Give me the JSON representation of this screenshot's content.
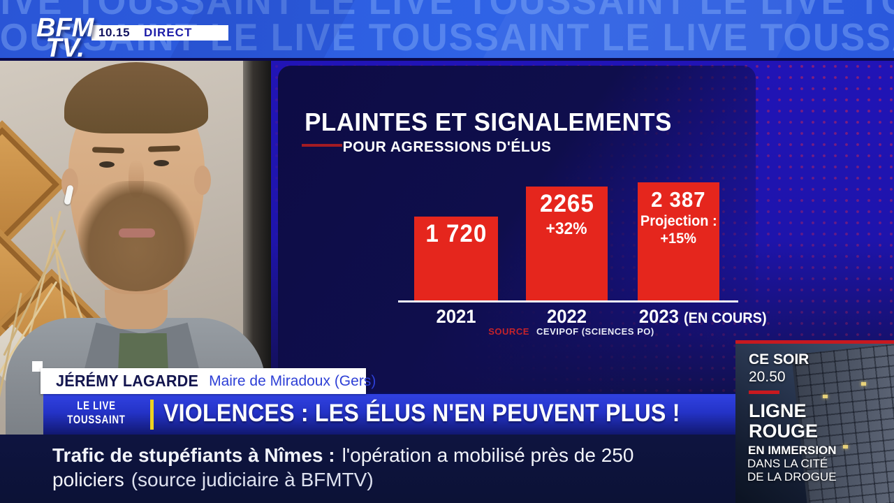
{
  "channel": {
    "logo_line1": "BFM",
    "logo_line2": "TV.",
    "time": "10.15",
    "live": "DIRECT"
  },
  "watermark": {
    "row": "LE LIVE TOUSSAINT LE LIVE TOUSSAINT LE LIVE TOUSSAINT LE LIVE TOUSSAINT"
  },
  "chart_data": {
    "type": "bar",
    "title": "PLAINTES ET SIGNALEMENTS",
    "subtitle": "POUR AGRESSIONS D'ÉLUS",
    "categories": [
      "2021",
      "2022",
      "2023 (EN COURS)"
    ],
    "values": [
      1720,
      2265,
      2387
    ],
    "bar_value_labels": [
      "1 720",
      "2265",
      "2 387"
    ],
    "annotations": {
      "growth_2022": "+32%",
      "projection_label": "Projection :",
      "projection_value": "+15%"
    },
    "x_display": {
      "y1": "2021",
      "y2": "2022",
      "y3": "2023",
      "y3_suffix": "(EN COURS)"
    },
    "source_label": "SOURCE",
    "source_text": "CEVIPOF (SCIENCES PO)",
    "bar_color": "#e5261d",
    "ylim": [
      0,
      2500
    ],
    "legend": "none",
    "grid": false
  },
  "speaker": {
    "name": "JÉRÉMY LAGARDE",
    "role": "Maire de Miradoux (Gers)"
  },
  "program_badge": {
    "line1": "LE LIVE",
    "line2": "TOUSSAINT"
  },
  "headline": {
    "text": "VIOLENCES : LES ÉLUS N'EN PEUVENT PLUS !"
  },
  "ticker": {
    "lead": "Trafic de stupéfiants à Nîmes :",
    "body": "l'opération a mobilisé près de 250",
    "body2": "policiers",
    "source": "(source judiciaire à BFMTV)"
  },
  "promo": {
    "kicker": "CE SOIR",
    "time": "20.50",
    "title_line1": "LIGNE",
    "title_line2": "ROUGE",
    "sub1": "EN IMMERSION",
    "sub2": "DANS LA CITÉ",
    "sub3": "DE LA DROGUE"
  },
  "colors": {
    "brand_blue": "#2f63e6",
    "panel_blue": "#1e14ac",
    "card_navy": "#0e0d48",
    "bar_red": "#e5261d",
    "banner_blue": "#2433c8",
    "badge_separator_yellow": "#edd21f",
    "ticker_navy": "#0d1238",
    "promo_red": "#c8191f"
  }
}
